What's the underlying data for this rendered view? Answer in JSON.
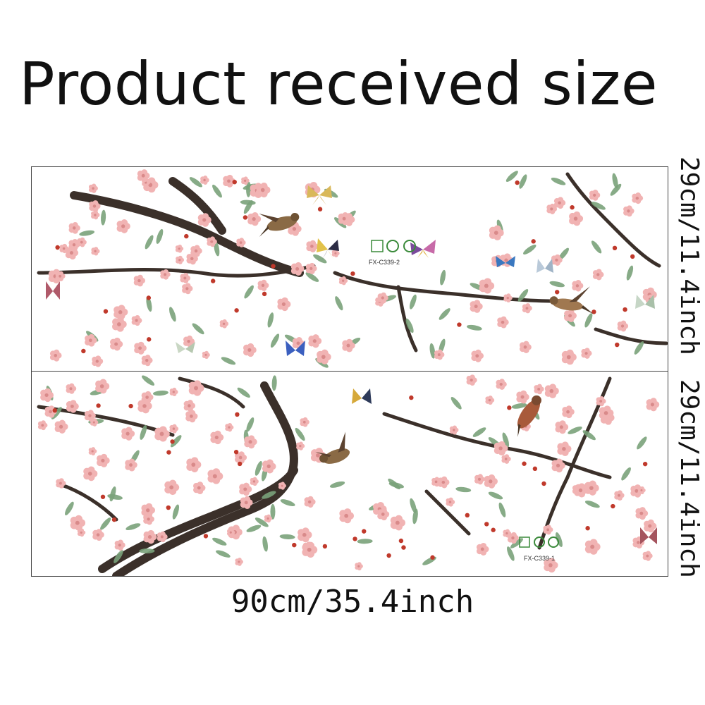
{
  "title": "Product received size",
  "dimensions": {
    "width_label": "90cm/35.4inch",
    "height_label_1": "29cm/11.4inch",
    "height_label_2": "29cm/11.4inch"
  },
  "sheets": [
    {
      "name": "sheet-top",
      "code": "FX-C339-2"
    },
    {
      "name": "sheet-bottom",
      "code": "FX-C339-1"
    }
  ],
  "colors": {
    "branch": "#3b302a",
    "blossom": "#f1b3b3",
    "blossom_dark": "#d98a8a",
    "berry": "#c0392b",
    "leaf": "#7aa27a",
    "border": "#444444"
  }
}
